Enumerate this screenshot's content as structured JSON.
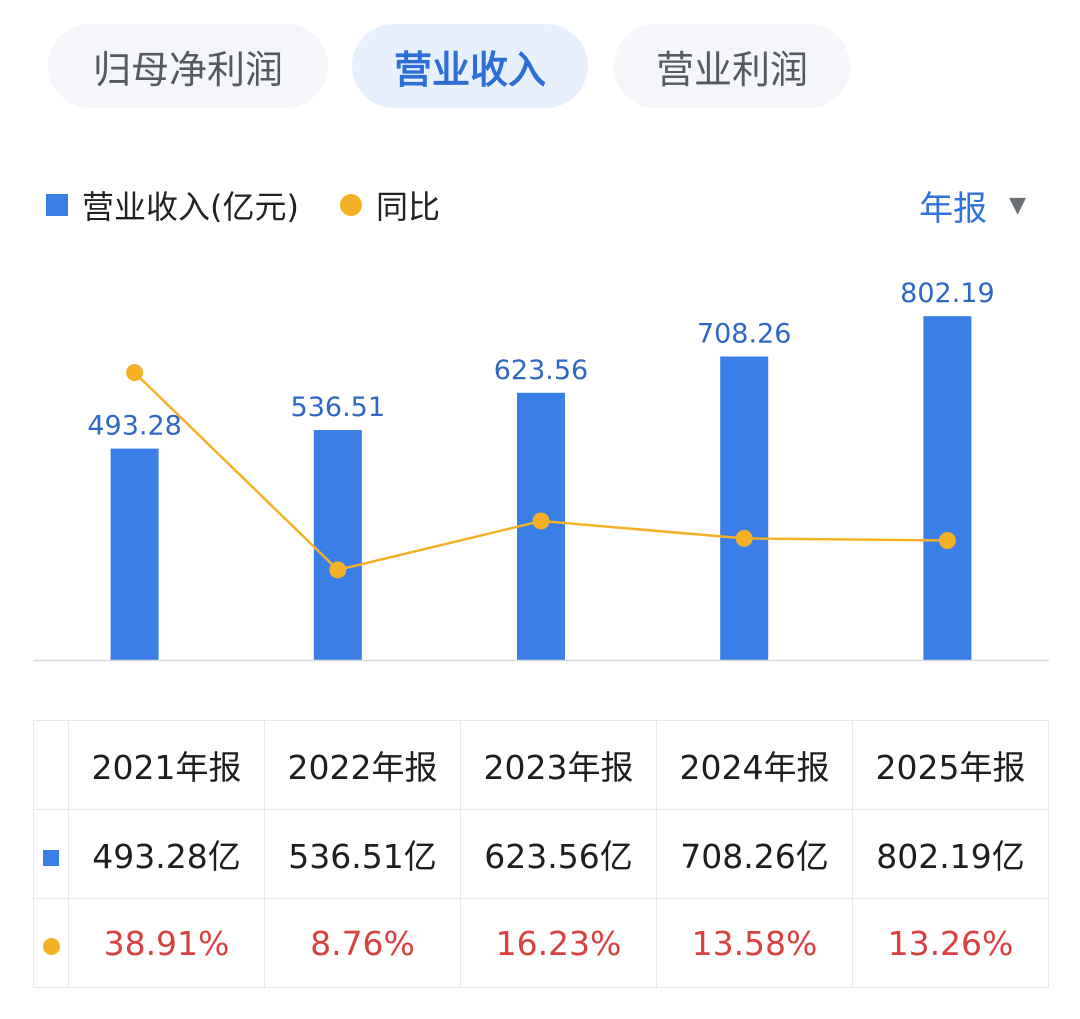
{
  "tabs": [
    {
      "label": "归母净利润",
      "active": false
    },
    {
      "label": "营业收入",
      "active": true
    },
    {
      "label": "营业利润",
      "active": false
    }
  ],
  "legend": {
    "revenue": "营业收入(亿元)",
    "yoy": "同比"
  },
  "period_selector": {
    "label": "年报"
  },
  "colors": {
    "bar": "#3a7ee8",
    "line": "#f5b126",
    "bar_label": "#2f68c4",
    "pct": "#d8413f"
  },
  "chart_data": {
    "type": "bar",
    "categories": [
      "2021年报",
      "2022年报",
      "2023年报",
      "2024年报",
      "2025年报"
    ],
    "series": [
      {
        "name": "营业收入(亿元)",
        "type": "bar",
        "values": [
          493.28,
          536.51,
          623.56,
          708.26,
          802.19
        ],
        "labels": [
          "493.28",
          "536.51",
          "623.56",
          "708.26",
          "802.19"
        ]
      },
      {
        "name": "同比",
        "type": "line",
        "values": [
          38.91,
          8.76,
          16.23,
          13.58,
          13.26
        ],
        "unit": "%"
      }
    ],
    "ylim": [
      0,
      840
    ],
    "y2lim": [
      -5,
      50
    ],
    "grid": false
  },
  "table": {
    "headers": [
      "2021年报",
      "2022年报",
      "2023年报",
      "2024年报",
      "2025年报"
    ],
    "revenue": [
      "493.28亿",
      "536.51亿",
      "623.56亿",
      "708.26亿",
      "802.19亿"
    ],
    "yoy": [
      "38.91%",
      "8.76%",
      "16.23%",
      "13.58%",
      "13.26%"
    ]
  }
}
